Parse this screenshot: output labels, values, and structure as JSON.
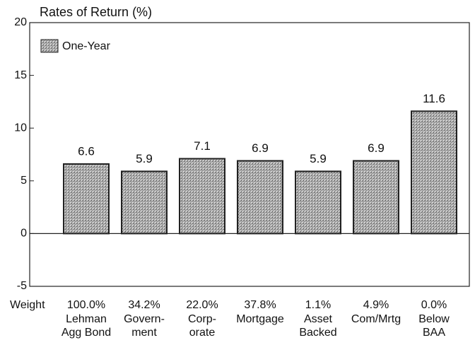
{
  "chart_data": {
    "type": "bar",
    "title": "Rates of Return (%)",
    "categories": [
      [
        "Lehman",
        "Agg Bond"
      ],
      [
        "Govern-",
        "ment"
      ],
      [
        "Corp-",
        "orate"
      ],
      [
        "Mortgage"
      ],
      [
        "Asset",
        "Backed"
      ],
      [
        "Com/Mrtg"
      ],
      [
        "Below",
        "BAA"
      ]
    ],
    "weight_label": "Weight",
    "weights": [
      "100.0%",
      "34.2%",
      "22.0%",
      "37.8%",
      "1.1%",
      "4.9%",
      "0.0%"
    ],
    "series": [
      {
        "name": "One-Year",
        "color": "#9a9a9a",
        "values": [
          6.6,
          5.9,
          7.1,
          6.9,
          5.9,
          6.9,
          11.6
        ]
      }
    ],
    "ylim": [
      -5,
      20
    ],
    "yticks": [
      -5,
      0,
      5,
      10,
      15,
      20
    ],
    "grid": false,
    "legend": "top-left"
  }
}
